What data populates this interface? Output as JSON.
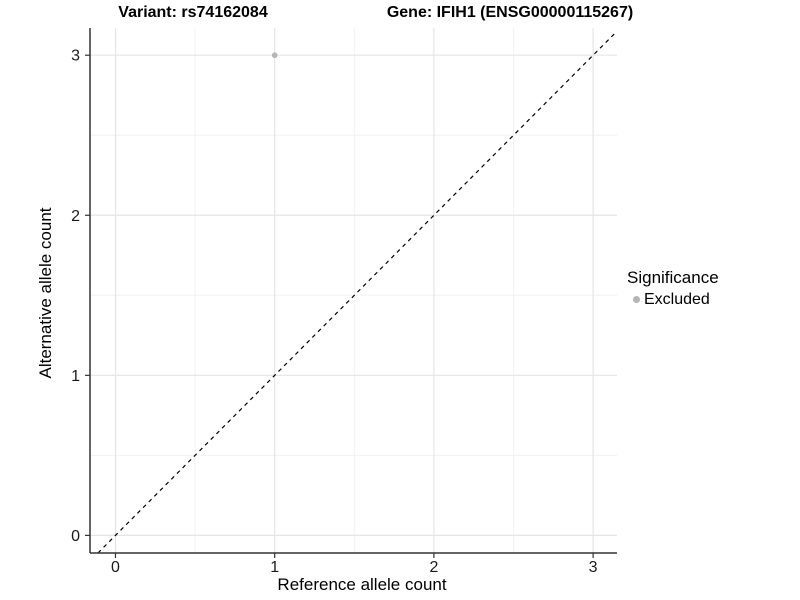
{
  "header": {
    "variant_title": "Variant: rs74162084",
    "gene_title": "Gene: IFIH1 (ENSG00000115267)"
  },
  "axes": {
    "x_label": "Reference allele count",
    "y_label": "Alternative allele count"
  },
  "legend": {
    "title": "Significance",
    "items": [
      {
        "label": "Excluded",
        "color": "#b5b5b5"
      }
    ]
  },
  "chart_data": {
    "type": "scatter",
    "title": "Variant: rs74162084 — Gene: IFIH1 (ENSG00000115267)",
    "xlabel": "Reference allele count",
    "ylabel": "Alternative allele count",
    "xlim": [
      -0.16,
      3.15
    ],
    "ylim": [
      -0.11,
      3.17
    ],
    "xticks": [
      0,
      1,
      2,
      3
    ],
    "yticks": [
      0,
      1,
      2,
      3
    ],
    "grid": true,
    "minor_grid": true,
    "legend_position": "right",
    "series": [
      {
        "name": "Excluded",
        "color": "#b5b5b5",
        "points": [
          {
            "x": 1,
            "y": 3
          }
        ]
      }
    ],
    "reference_line": {
      "type": "identity",
      "slope": 1,
      "intercept": 0,
      "style": "dashed",
      "color": "#000000"
    }
  },
  "colors": {
    "background": "#ffffff",
    "grid_major": "#e5e5e5",
    "grid_minor": "#f2f2f2",
    "axis_line": "#333333",
    "tick_mark": "#333333",
    "tick_label": "#1a1a1a",
    "dashed_line": "#000000"
  }
}
